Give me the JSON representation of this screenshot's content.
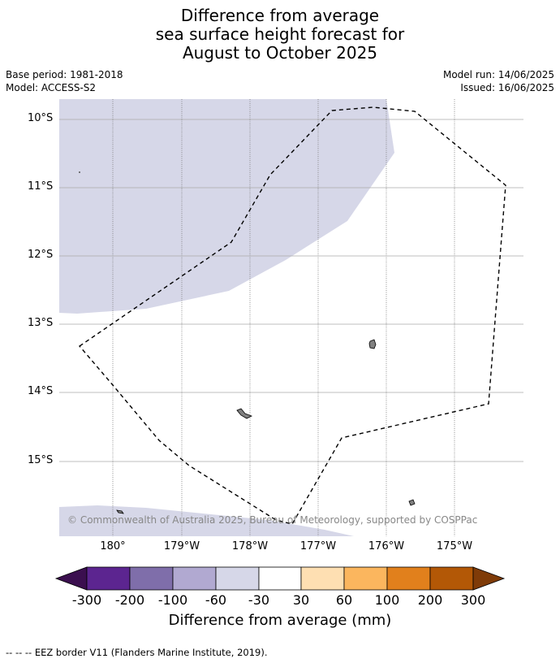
{
  "title": {
    "line1": "Difference from average",
    "line2": "sea surface height forecast for",
    "line3": "August to October 2025"
  },
  "meta": {
    "base_period": "Base period: 1981-2018",
    "model": "Model: ACCESS-S2",
    "model_run": "Model run: 14/06/2025",
    "issued": "Issued: 16/06/2025"
  },
  "map": {
    "lat_labels": [
      "10°S",
      "11°S",
      "12°S",
      "13°S",
      "14°S",
      "15°S"
    ],
    "lon_labels": [
      "180°",
      "179°W",
      "178°W",
      "177°W",
      "176°W",
      "175°W"
    ],
    "copyright": "© Commonwealth of Australia 2025, Bureau of Meteorology, supported by COSPPac",
    "anomaly_region_color": "#d6d7e8",
    "land_color": "#808080",
    "eez_line_style": "dashed"
  },
  "colorbar": {
    "tick_labels": [
      "-300",
      "-200",
      "-100",
      "-60",
      "-30",
      "30",
      "60",
      "100",
      "200",
      "300"
    ],
    "colors": [
      "#3b0f4f",
      "#5c2590",
      "#7f6eaa",
      "#b1a9d1",
      "#d6d7e8",
      "#ffffff",
      "#fedfb2",
      "#fbb65e",
      "#e1801c",
      "#b35806",
      "#7f3b08"
    ],
    "label": "Difference from average (mm)"
  },
  "footer": {
    "legend": "-- -- -- EEZ border V11 (Flanders Marine Institute, 2019)."
  }
}
